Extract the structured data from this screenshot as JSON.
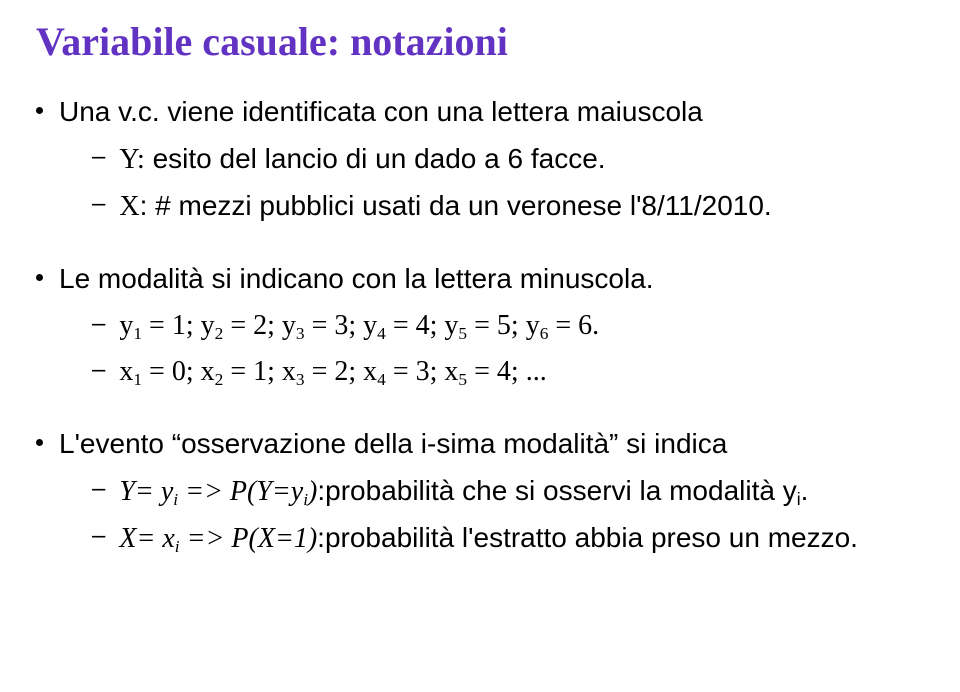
{
  "title": "Variabile casuale: notazioni",
  "b1": "Una v.c. viene identificata con una lettera maiuscola",
  "b1s1_pre": "Y:",
  "b1s1_rest": "  esito del lancio di un dado a 6 facce.",
  "b1s2_pre": "X",
  "b1s2_rest": ": # mezzi pubblici usati da un veronese l'8/11/2010.",
  "b2": "Le modalità si indicano con la lettera minuscola.",
  "b2s1_parts": {
    "y": "y",
    "eq": " = ",
    "semi": "; ",
    "dot": ".",
    "v1": "1",
    "v2": "2",
    "v3": "3",
    "v4": "4",
    "v5": "5",
    "v6": "6",
    "i1": "1",
    "i2": "2",
    "i3": "3",
    "i4": "4",
    "i5": "5",
    "i6": "6"
  },
  "b2s2_parts": {
    "x": "x",
    "eq": " = ",
    "semi": "; ",
    "ell": "...",
    "v0": "0",
    "v1": "1",
    "v2": "2",
    "v3": "3",
    "v4": "4",
    "i1": "1",
    "i2": "2",
    "i3": "3",
    "i4": "4",
    "i5": "5"
  },
  "b3": "L'evento \"osservazione della i-sima modalità\" si indica",
  "b3s1": {
    "pre": "Y= y",
    "sub_i": "i",
    "arrow": " => ",
    "pfx": "P(Y=y",
    "sub_i2": "i",
    "close": ")",
    "rest": ":probabilità che si osservi la modalità y",
    "sub_i3": "i",
    "dot": "."
  },
  "b3s2": {
    "pre": "X= x",
    "sub_i": "i",
    "arrow": " => ",
    "pfx": "P(X=1)",
    "rest": ":probabilità l'estratto abbia preso un mezzo."
  }
}
